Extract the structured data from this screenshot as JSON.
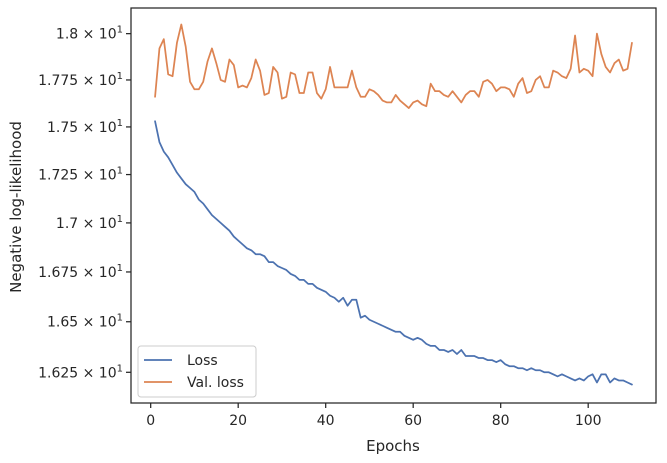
{
  "chart_data": {
    "type": "line",
    "xlabel": "Epochs",
    "ylabel": "Negative log-likelihood",
    "xlim": [
      -4.5,
      115.5
    ],
    "ylim": [
      16.1,
      18.14
    ],
    "x_ticks": [
      0,
      20,
      40,
      60,
      80,
      100
    ],
    "x_tick_labels": [
      "0",
      "20",
      "40",
      "60",
      "80",
      "100"
    ],
    "y_ticks": [
      16.25,
      16.5,
      16.75,
      17.0,
      17.25,
      17.5,
      17.75,
      18.0
    ],
    "y_tick_labels": [
      {
        "mant": "1.625",
        "exp": "1"
      },
      {
        "mant": "1.65",
        "exp": "1"
      },
      {
        "mant": "1.675",
        "exp": "1"
      },
      {
        "mant": "1.7",
        "exp": "1"
      },
      {
        "mant": "1.725",
        "exp": "1"
      },
      {
        "mant": "1.75",
        "exp": "1"
      },
      {
        "mant": "1.775",
        "exp": "1"
      },
      {
        "mant": "1.8",
        "exp": "1"
      }
    ],
    "y_scale": "log",
    "grid": false,
    "legend_position": "bottom-left",
    "series": [
      {
        "name": "Loss",
        "color": "#4c72b0",
        "x": [
          1,
          2,
          3,
          4,
          5,
          6,
          7,
          8,
          9,
          10,
          11,
          12,
          13,
          14,
          15,
          16,
          17,
          18,
          19,
          20,
          21,
          22,
          23,
          24,
          25,
          26,
          27,
          28,
          29,
          30,
          31,
          32,
          33,
          34,
          35,
          36,
          37,
          38,
          39,
          40,
          41,
          42,
          43,
          44,
          45,
          46,
          47,
          48,
          49,
          50,
          51,
          52,
          53,
          54,
          55,
          56,
          57,
          58,
          59,
          60,
          61,
          62,
          63,
          64,
          65,
          66,
          67,
          68,
          69,
          70,
          71,
          72,
          73,
          74,
          75,
          76,
          77,
          78,
          79,
          80,
          81,
          82,
          83,
          84,
          85,
          86,
          87,
          88,
          89,
          90,
          91,
          92,
          93,
          94,
          95,
          96,
          97,
          98,
          99,
          100,
          101,
          102,
          103,
          104,
          105,
          106,
          107,
          108,
          109,
          110
        ],
        "values": [
          17.53,
          17.42,
          17.37,
          17.34,
          17.3,
          17.26,
          17.23,
          17.2,
          17.18,
          17.16,
          17.12,
          17.1,
          17.07,
          17.04,
          17.02,
          17.0,
          16.98,
          16.96,
          16.93,
          16.91,
          16.89,
          16.87,
          16.86,
          16.84,
          16.84,
          16.83,
          16.8,
          16.8,
          16.78,
          16.77,
          16.76,
          16.74,
          16.73,
          16.71,
          16.71,
          16.69,
          16.69,
          16.67,
          16.66,
          16.65,
          16.63,
          16.62,
          16.6,
          16.62,
          16.58,
          16.61,
          16.61,
          16.52,
          16.53,
          16.51,
          16.5,
          16.49,
          16.48,
          16.47,
          16.46,
          16.45,
          16.45,
          16.43,
          16.42,
          16.41,
          16.42,
          16.41,
          16.39,
          16.38,
          16.38,
          16.36,
          16.36,
          16.35,
          16.36,
          16.34,
          16.36,
          16.33,
          16.33,
          16.33,
          16.32,
          16.32,
          16.31,
          16.31,
          16.3,
          16.31,
          16.29,
          16.28,
          16.28,
          16.27,
          16.27,
          16.26,
          16.27,
          16.26,
          16.26,
          16.25,
          16.25,
          16.24,
          16.23,
          16.24,
          16.23,
          16.22,
          16.21,
          16.22,
          16.21,
          16.23,
          16.24,
          16.2,
          16.24,
          16.24,
          16.2,
          16.22,
          16.21,
          16.21,
          16.2,
          16.19
        ]
      },
      {
        "name": "Val. loss",
        "color": "#dd8452",
        "x": [
          1,
          2,
          3,
          4,
          5,
          6,
          7,
          8,
          9,
          10,
          11,
          12,
          13,
          14,
          15,
          16,
          17,
          18,
          19,
          20,
          21,
          22,
          23,
          24,
          25,
          26,
          27,
          28,
          29,
          30,
          31,
          32,
          33,
          34,
          35,
          36,
          37,
          38,
          39,
          40,
          41,
          42,
          43,
          44,
          45,
          46,
          47,
          48,
          49,
          50,
          51,
          52,
          53,
          54,
          55,
          56,
          57,
          58,
          59,
          60,
          61,
          62,
          63,
          64,
          65,
          66,
          67,
          68,
          69,
          70,
          71,
          72,
          73,
          74,
          75,
          76,
          77,
          78,
          79,
          80,
          81,
          82,
          83,
          84,
          85,
          86,
          87,
          88,
          89,
          90,
          91,
          92,
          93,
          94,
          95,
          96,
          97,
          98,
          99,
          100,
          101,
          102,
          103,
          104,
          105,
          106,
          107,
          108,
          109,
          110
        ],
        "values": [
          17.66,
          17.92,
          17.97,
          17.78,
          17.77,
          17.95,
          18.05,
          17.93,
          17.74,
          17.7,
          17.7,
          17.74,
          17.85,
          17.92,
          17.84,
          17.75,
          17.74,
          17.86,
          17.83,
          17.71,
          17.72,
          17.71,
          17.76,
          17.86,
          17.8,
          17.67,
          17.68,
          17.82,
          17.79,
          17.65,
          17.66,
          17.79,
          17.78,
          17.68,
          17.68,
          17.79,
          17.79,
          17.68,
          17.65,
          17.7,
          17.82,
          17.71,
          17.71,
          17.71,
          17.71,
          17.8,
          17.71,
          17.66,
          17.66,
          17.7,
          17.69,
          17.67,
          17.64,
          17.63,
          17.63,
          17.67,
          17.64,
          17.62,
          17.6,
          17.63,
          17.64,
          17.62,
          17.61,
          17.73,
          17.69,
          17.69,
          17.67,
          17.66,
          17.69,
          17.66,
          17.63,
          17.67,
          17.69,
          17.69,
          17.66,
          17.74,
          17.75,
          17.73,
          17.69,
          17.71,
          17.71,
          17.7,
          17.66,
          17.73,
          17.76,
          17.68,
          17.69,
          17.75,
          17.77,
          17.71,
          17.71,
          17.8,
          17.79,
          17.77,
          17.76,
          17.81,
          17.99,
          17.79,
          17.81,
          17.8,
          17.77,
          18.0,
          17.89,
          17.82,
          17.79,
          17.84,
          17.86,
          17.8,
          17.81,
          17.95
        ]
      }
    ]
  }
}
